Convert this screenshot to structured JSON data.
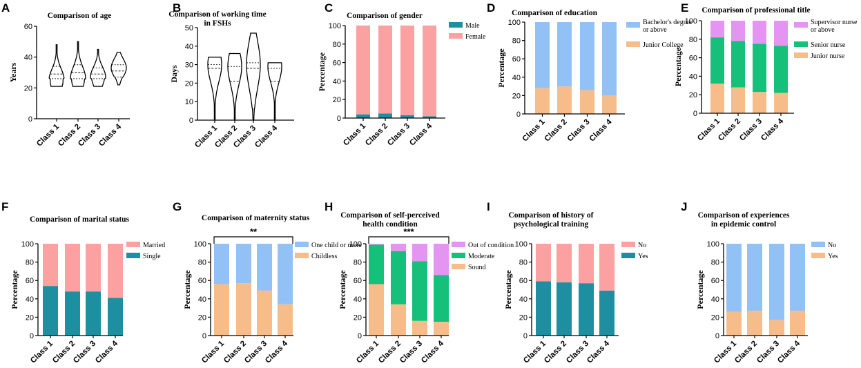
{
  "colors": {
    "pink": "#fca1a1",
    "teal": "#1e8fa0",
    "blue": "#92c2f5",
    "orange": "#f6bd8a",
    "green": "#16c07a",
    "purple": "#e495f2",
    "black": "#000000"
  },
  "chart_data": [
    {
      "id": "A",
      "label": "A",
      "type": "violin",
      "title": [
        "Comparison of age"
      ],
      "ylabel": "Years",
      "ylim": [
        0,
        60
      ],
      "yticks": [
        0,
        20,
        40,
        60
      ],
      "categories": [
        "Class 1",
        "Class 2",
        "Class 3",
        "Class 4"
      ],
      "violins": [
        {
          "min": 21,
          "max": 48,
          "q1": 26,
          "median": 29,
          "q3": 34,
          "mode": 25
        },
        {
          "min": 21,
          "max": 50,
          "q1": 26,
          "median": 30,
          "q3": 35,
          "mode": 26
        },
        {
          "min": 21,
          "max": 45,
          "q1": 26,
          "median": 29,
          "q3": 33,
          "mode": 27
        },
        {
          "min": 22,
          "max": 43,
          "q1": 27,
          "median": 31,
          "q3": 35,
          "mode": 33
        }
      ]
    },
    {
      "id": "B",
      "label": "B",
      "type": "violin",
      "title": [
        "Comparison of working time",
        "in FSHs"
      ],
      "ylabel": "Days",
      "ylim": [
        0,
        50
      ],
      "yticks": [
        0,
        10,
        20,
        30,
        40,
        50
      ],
      "categories": [
        "Class 1",
        "Class 2",
        "Class 3",
        "Class 4"
      ],
      "violins": [
        {
          "min": 0,
          "max": 34,
          "q1": 6,
          "median": 28,
          "q3": 30,
          "mode": 30
        },
        {
          "min": 0,
          "max": 36,
          "q1": 5,
          "median": 21,
          "q3": 29,
          "mode": 29
        },
        {
          "min": 0,
          "max": 47,
          "q1": 6,
          "median": 28,
          "q3": 31,
          "mode": 30
        },
        {
          "min": 0,
          "max": 31,
          "q1": 10,
          "median": 21,
          "q3": 28,
          "mode": 29
        }
      ]
    },
    {
      "id": "C",
      "label": "C",
      "type": "stacked_bar",
      "title": [
        "Comparison of gender"
      ],
      "ylabel": "Percentage",
      "ylim": [
        0,
        100
      ],
      "yticks": [
        0,
        20,
        40,
        60,
        80,
        100
      ],
      "categories": [
        "Class 1",
        "Class 2",
        "Class 3",
        "Class 4"
      ],
      "series": [
        {
          "name": "Male",
          "color": "#1e8fa0",
          "values": [
            4,
            5,
            3,
            2
          ]
        },
        {
          "name": "Female",
          "color": "#fca1a1",
          "values": [
            96,
            95,
            97,
            98
          ]
        }
      ],
      "legend": [
        "Male",
        "Female"
      ]
    },
    {
      "id": "D",
      "label": "D",
      "type": "stacked_bar",
      "title": [
        "Comparison of education"
      ],
      "ylabel": "Percentage",
      "ylim": [
        0,
        100
      ],
      "yticks": [
        0,
        20,
        40,
        60,
        80,
        100
      ],
      "categories": [
        "Class 1",
        "Class 2",
        "Class 3",
        "Class 4"
      ],
      "series": [
        {
          "name": "Junior College",
          "color": "#f6bd8a",
          "values": [
            28,
            30,
            26,
            20
          ]
        },
        {
          "name": "Bachelor's degree or above",
          "color": "#92c2f5",
          "values": [
            72,
            70,
            74,
            80
          ]
        }
      ],
      "legend": [
        "Bachelor's degree or above",
        "Junior College"
      ]
    },
    {
      "id": "E",
      "label": "E",
      "type": "stacked_bar",
      "title": [
        "Comparison of professional title"
      ],
      "ylabel": "Percentage",
      "ylim": [
        0,
        100
      ],
      "yticks": [
        0,
        20,
        40,
        60,
        80,
        100
      ],
      "categories": [
        "Class 1",
        "Class 2",
        "Class 3",
        "Class 4"
      ],
      "series": [
        {
          "name": "Junior nurse",
          "color": "#f6bd8a",
          "values": [
            32,
            28,
            23,
            22
          ]
        },
        {
          "name": "Senior nurse",
          "color": "#16c07a",
          "values": [
            50,
            50,
            52,
            51
          ]
        },
        {
          "name": "Supervisor nurse or above",
          "color": "#e495f2",
          "values": [
            18,
            22,
            25,
            27
          ]
        }
      ],
      "legend": [
        "Supervisor nurse or above",
        "Senior nurse",
        "Junior nurse"
      ]
    },
    {
      "id": "F",
      "label": "F",
      "type": "stacked_bar",
      "title": [
        "Comparison of marital status"
      ],
      "ylabel": "Percentage",
      "ylim": [
        0,
        100
      ],
      "yticks": [
        0,
        20,
        40,
        60,
        80,
        100
      ],
      "categories": [
        "Class 1",
        "Class 2",
        "Class 3",
        "Class 4"
      ],
      "series": [
        {
          "name": "Single",
          "color": "#1e8fa0",
          "values": [
            54,
            48,
            48,
            41
          ]
        },
        {
          "name": "Married",
          "color": "#fca1a1",
          "values": [
            46,
            52,
            52,
            59
          ]
        }
      ],
      "legend": [
        "Married",
        "Single"
      ]
    },
    {
      "id": "G",
      "label": "G",
      "type": "stacked_bar",
      "title": [
        "Comparison of maternity status"
      ],
      "ylabel": "Percentage",
      "ylim": [
        0,
        100
      ],
      "yticks": [
        0,
        20,
        40,
        60,
        80,
        100
      ],
      "categories": [
        "Class 1",
        "Class 2",
        "Class 3",
        "Class 4"
      ],
      "series": [
        {
          "name": "Childless",
          "color": "#f6bd8a",
          "values": [
            56,
            57,
            49,
            34
          ]
        },
        {
          "name": "One child or more",
          "color": "#92c2f5",
          "values": [
            44,
            43,
            51,
            66
          ]
        }
      ],
      "legend": [
        "One child or more",
        "Childless"
      ],
      "significance": "**"
    },
    {
      "id": "H",
      "label": "H",
      "type": "stacked_bar",
      "title": [
        "Comparison of self-perceived",
        "health condition"
      ],
      "ylabel": "Percentage",
      "ylim": [
        0,
        100
      ],
      "yticks": [
        0,
        20,
        40,
        60,
        80,
        100
      ],
      "categories": [
        "Class 1",
        "Class 2",
        "Class 3",
        "Class 4"
      ],
      "series": [
        {
          "name": "Sound",
          "color": "#f6bd8a",
          "values": [
            56,
            34,
            16,
            15
          ]
        },
        {
          "name": "Moderate",
          "color": "#16c07a",
          "values": [
            43,
            58,
            65,
            51
          ]
        },
        {
          "name": "Out of condition",
          "color": "#e495f2",
          "values": [
            1,
            8,
            19,
            34
          ]
        }
      ],
      "legend": [
        "Out of condition",
        "Moderate",
        "Sound"
      ],
      "significance": "***"
    },
    {
      "id": "I",
      "label": "I",
      "type": "stacked_bar",
      "title": [
        "Comparison of history of",
        "psychological training"
      ],
      "ylabel": "Percentage",
      "ylim": [
        0,
        100
      ],
      "yticks": [
        0,
        20,
        40,
        60,
        80,
        100
      ],
      "categories": [
        "Class 1",
        "Class 2",
        "Class 3",
        "Class 4"
      ],
      "series": [
        {
          "name": "Yes",
          "color": "#1e8fa0",
          "values": [
            59,
            58,
            57,
            49
          ]
        },
        {
          "name": "No",
          "color": "#fca1a1",
          "values": [
            41,
            42,
            43,
            51
          ]
        }
      ],
      "legend": [
        "No",
        "Yes"
      ]
    },
    {
      "id": "J",
      "label": "J",
      "type": "stacked_bar",
      "title": [
        "Comparison of experiences",
        "in epidemic control"
      ],
      "ylabel": "Percentage",
      "ylim": [
        0,
        100
      ],
      "yticks": [
        0,
        20,
        40,
        60,
        80,
        100
      ],
      "categories": [
        "Class 1",
        "Class 2",
        "Class 3",
        "Class 4"
      ],
      "series": [
        {
          "name": "Yes",
          "color": "#f6bd8a",
          "values": [
            26,
            27,
            17,
            27
          ]
        },
        {
          "name": "No",
          "color": "#92c2f5",
          "values": [
            74,
            73,
            83,
            73
          ]
        }
      ],
      "legend": [
        "No",
        "Yes"
      ]
    }
  ]
}
